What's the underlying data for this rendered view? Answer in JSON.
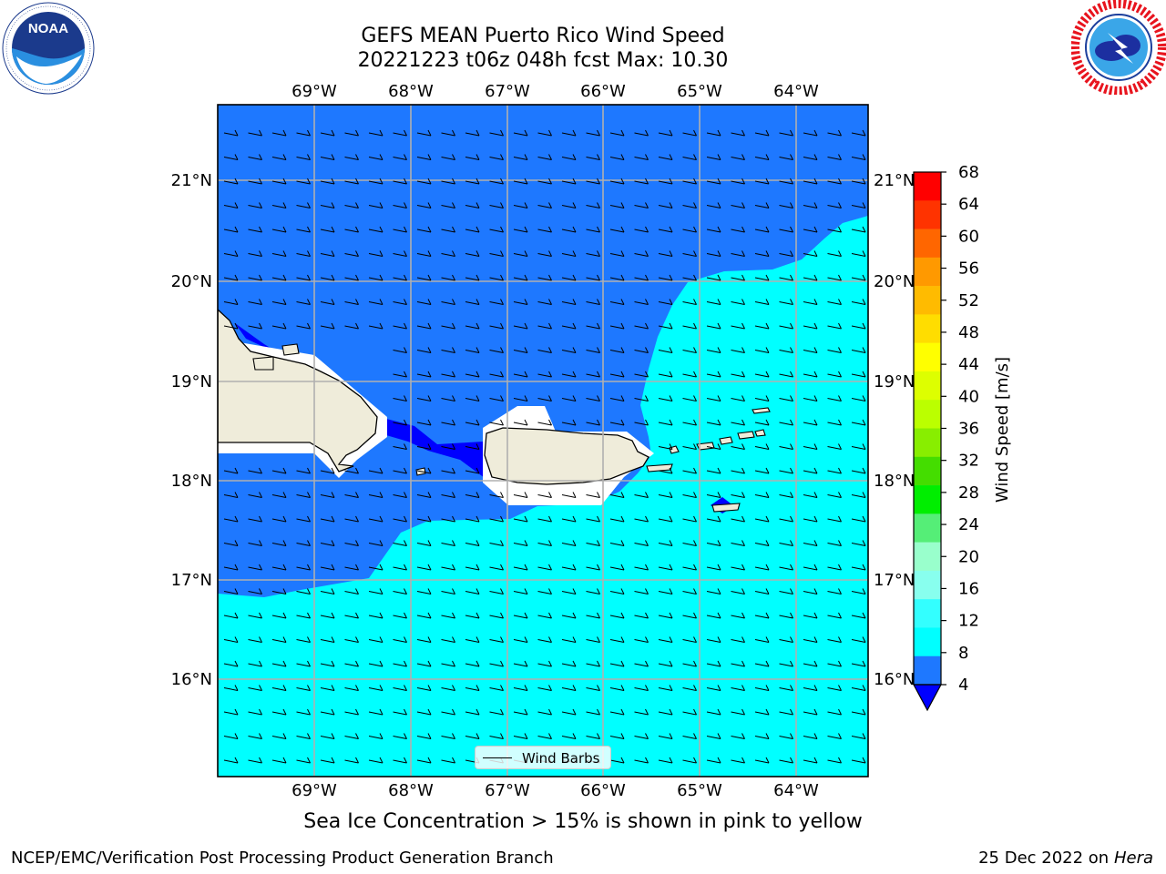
{
  "title_line1": "GEFS MEAN Puerto Rico Wind Speed",
  "title_line2": "20221223 t06z 048h fcst   Max: 10.30",
  "logos": {
    "left": {
      "name": "noaa-logo",
      "text": "NOAA",
      "ring_text": "NATIONAL OCEANIC AND ATMOSPHERIC ADMINISTRATION · U.S. DEPARTMENT OF COMMERCE"
    },
    "right": {
      "name": "nws-logo",
      "ring_text": "NATIONAL WEATHER SERVICE"
    }
  },
  "map": {
    "lon_labels": [
      "69°W",
      "68°W",
      "67°W",
      "66°W",
      "65°W",
      "64°W"
    ],
    "lat_labels": [
      "21°N",
      "20°N",
      "19°N",
      "18°N",
      "17°N",
      "16°N"
    ],
    "colors": {
      "ocean_4_8": "#1e78ff",
      "ocean_8_12": "#00ffff",
      "below_4": "#0000ff",
      "land": "#efecda",
      "coast": "#000000",
      "grid": "#b0b0b0"
    }
  },
  "legend": {
    "label": "Wind Barbs",
    "icon": "wind-barb-line-icon"
  },
  "colorbar": {
    "label": "Wind Speed [m/s]",
    "ticks": [
      "68",
      "64",
      "60",
      "56",
      "52",
      "48",
      "44",
      "40",
      "36",
      "32",
      "28",
      "24",
      "20",
      "16",
      "12",
      "8",
      "4"
    ],
    "colors": [
      "#ff0000",
      "#ff3300",
      "#ff6600",
      "#ff9900",
      "#ffbb00",
      "#ffdd00",
      "#ffff00",
      "#ddff00",
      "#bbff00",
      "#88ee00",
      "#44dd00",
      "#00ee00",
      "#55ee77",
      "#99ffcc",
      "#88ffee",
      "#33ffff",
      "#00ffff",
      "#1e78ff"
    ],
    "under_color": "#0000ff"
  },
  "note": "Sea Ice Concentration > 15% is shown in pink to yellow",
  "footer_left": "NCEP/EMC/Verification Post Processing Product Generation Branch",
  "footer_date": "25 Dec 2022 on",
  "footer_machine": "Hera"
}
